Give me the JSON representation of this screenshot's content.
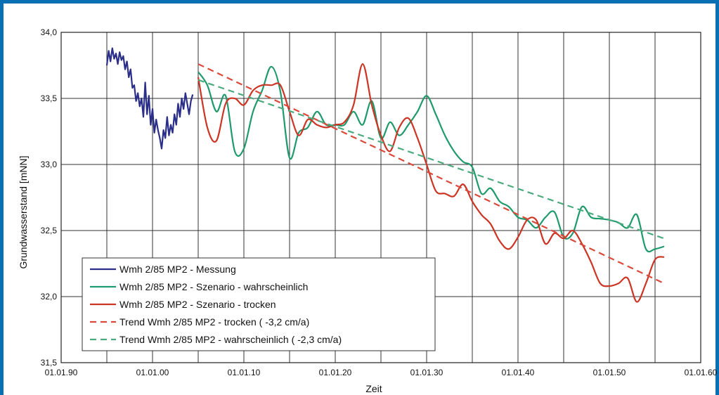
{
  "chart_data": {
    "type": "line",
    "title": "",
    "xlabel": "Zeit",
    "ylabel": "Grundwasserstand [mNN]",
    "xlim": [
      1990,
      2060
    ],
    "ylim": [
      31.5,
      34.0
    ],
    "x_tick_labels": [
      "01.01.90",
      "01.01.00",
      "01.01.10",
      "01.01.20",
      "01.01.30",
      "01.01.40",
      "01.01.50",
      "01.01.60"
    ],
    "x_tick_values": [
      1990,
      2000,
      2010,
      2020,
      2030,
      2040,
      2050,
      2060
    ],
    "y_tick_labels": [
      "31,5",
      "32,0",
      "32,5",
      "33,0",
      "33,5",
      "34,0"
    ],
    "y_tick_values": [
      31.5,
      32.0,
      32.5,
      33.0,
      33.5,
      34.0
    ],
    "grid": true,
    "legend_position": "bottom-left",
    "series": [
      {
        "name": "Wmh 2/85 MP2  - Messung",
        "color": "#2b2f8a",
        "style": "solid",
        "x": [
          1995.0,
          1995.2,
          1995.4,
          1995.6,
          1995.8,
          1996.0,
          1996.2,
          1996.4,
          1996.6,
          1996.8,
          1997.0,
          1997.2,
          1997.4,
          1997.6,
          1997.8,
          1998.0,
          1998.2,
          1998.4,
          1998.6,
          1998.8,
          1999.0,
          1999.2,
          1999.4,
          1999.6,
          1999.8,
          2000.0,
          2000.2,
          2000.4,
          2000.6,
          2000.8,
          2001.0,
          2001.2,
          2001.4,
          2001.6,
          2001.8,
          2002.0,
          2002.2,
          2002.4,
          2002.6,
          2002.8,
          2003.0,
          2003.2,
          2003.4,
          2003.6,
          2003.8,
          2004.0,
          2004.2,
          2004.4
        ],
        "y": [
          33.75,
          33.86,
          33.78,
          33.88,
          33.8,
          33.84,
          33.76,
          33.85,
          33.79,
          33.82,
          33.72,
          33.78,
          33.66,
          33.72,
          33.58,
          33.6,
          33.48,
          33.54,
          33.44,
          33.5,
          33.36,
          33.62,
          33.38,
          33.52,
          33.3,
          33.42,
          33.24,
          33.34,
          33.26,
          33.2,
          33.12,
          33.26,
          33.2,
          33.36,
          33.22,
          33.3,
          33.24,
          33.38,
          33.3,
          33.46,
          33.36,
          33.5,
          33.42,
          33.54,
          33.46,
          33.38,
          33.48,
          33.53
        ]
      },
      {
        "name": "Wmh 2/85 MP2  - Szenario  - wahrscheinlich",
        "color": "#1f9a6c",
        "style": "solid",
        "x": [
          2005,
          2006,
          2007,
          2008,
          2009,
          2010,
          2011,
          2012,
          2013,
          2014,
          2015,
          2016,
          2017,
          2018,
          2019,
          2020,
          2021,
          2022,
          2023,
          2024,
          2025,
          2026,
          2027,
          2028,
          2029,
          2030,
          2031,
          2032,
          2033,
          2034,
          2035,
          2036,
          2037,
          2038,
          2039,
          2040,
          2041,
          2042,
          2043,
          2044,
          2045,
          2046,
          2047,
          2048,
          2049,
          2050,
          2051,
          2052,
          2053,
          2054,
          2055,
          2056
        ],
        "y": [
          33.7,
          33.6,
          33.4,
          33.52,
          33.1,
          33.12,
          33.4,
          33.56,
          33.74,
          33.55,
          33.05,
          33.24,
          33.28,
          33.4,
          33.3,
          33.3,
          33.3,
          33.4,
          33.3,
          33.48,
          33.2,
          33.32,
          33.22,
          33.3,
          33.4,
          33.52,
          33.38,
          33.22,
          33.1,
          33.02,
          32.98,
          32.78,
          32.82,
          32.72,
          32.68,
          32.6,
          32.58,
          32.52,
          32.6,
          32.64,
          32.45,
          32.48,
          32.68,
          32.6,
          32.59,
          32.58,
          32.56,
          32.52,
          32.62,
          32.36,
          32.36,
          32.38
        ]
      },
      {
        "name": "Wmh 2/85 MP2  - Szenario  - trocken",
        "color": "#cc3424",
        "style": "solid",
        "x": [
          2005,
          2006,
          2007,
          2008,
          2009,
          2010,
          2011,
          2012,
          2013,
          2014,
          2015,
          2016,
          2017,
          2018,
          2019,
          2020,
          2021,
          2022,
          2023,
          2024,
          2025,
          2026,
          2027,
          2028,
          2029,
          2030,
          2031,
          2032,
          2033,
          2034,
          2035,
          2036,
          2037,
          2038,
          2039,
          2040,
          2041,
          2042,
          2043,
          2044,
          2045,
          2046,
          2047,
          2048,
          2049,
          2050,
          2051,
          2052,
          2053,
          2054,
          2055,
          2056
        ],
        "y": [
          33.66,
          33.28,
          33.18,
          33.46,
          33.5,
          33.45,
          33.56,
          33.6,
          33.6,
          33.6,
          33.4,
          33.22,
          33.34,
          33.3,
          33.28,
          33.3,
          33.32,
          33.45,
          33.76,
          33.45,
          33.22,
          33.1,
          33.28,
          33.35,
          33.2,
          33.0,
          32.8,
          32.78,
          32.76,
          32.85,
          32.72,
          32.62,
          32.55,
          32.42,
          32.36,
          32.45,
          32.58,
          32.58,
          32.4,
          32.48,
          32.44,
          32.5,
          32.4,
          32.26,
          32.1,
          32.08,
          32.1,
          32.14,
          31.96,
          32.1,
          32.28,
          32.3
        ]
      },
      {
        "name": "Trend Wmh 2/85 MP2   - trocken ( -3,2 cm/a)",
        "color": "#d94a3b",
        "style": "dashed",
        "x": [
          2005,
          2056
        ],
        "y": [
          33.76,
          32.1
        ]
      },
      {
        "name": "Trend Wmh 2/85 MP2   - wahrscheinlich (  -2,3 cm/a)",
        "color": "#4caa7f",
        "style": "dashed",
        "x": [
          2005,
          2056
        ],
        "y": [
          33.64,
          32.44
        ]
      }
    ]
  }
}
